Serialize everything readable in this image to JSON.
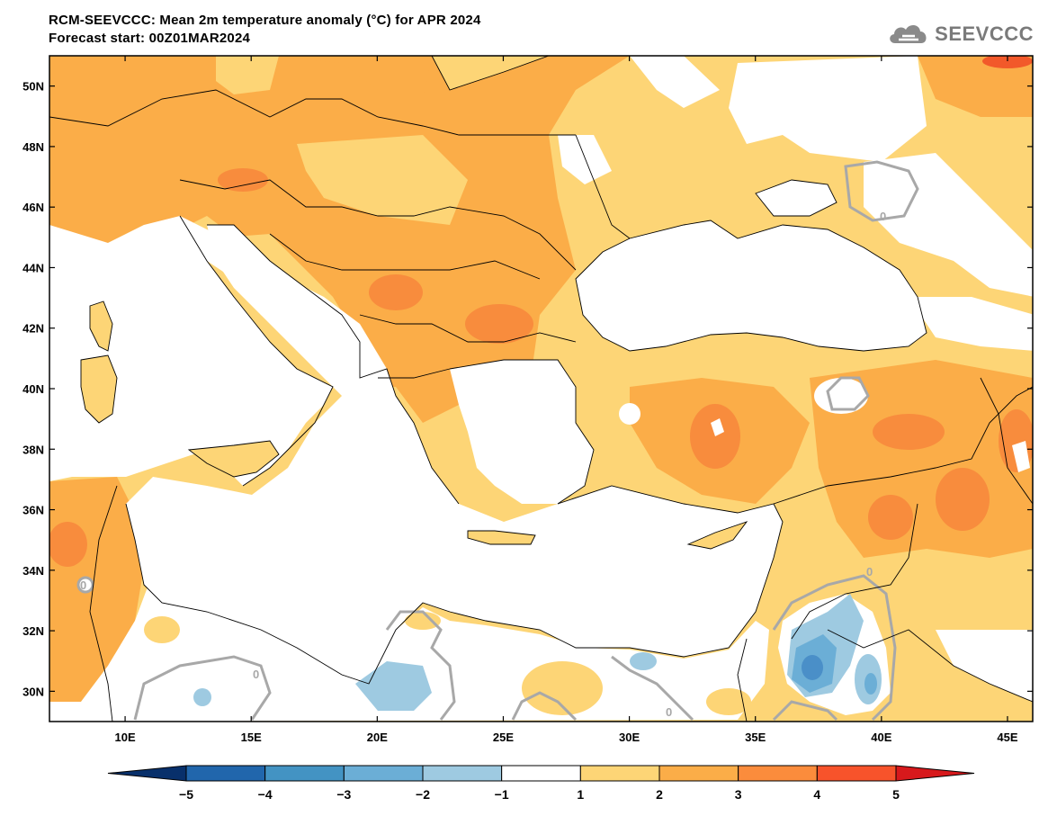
{
  "header": {
    "title": "RCM-SEEVCCC: Mean 2m temperature anomaly (°C) for APR 2024",
    "subtitle": "Forecast start: 00Z01MAR2024"
  },
  "logo": {
    "text": "SEEVCCC",
    "icon": "cloud-icon"
  },
  "map": {
    "lon_range": [
      7,
      46
    ],
    "lat_range": [
      29,
      51
    ],
    "lat_ticks": [
      "50N",
      "48N",
      "46N",
      "44N",
      "42N",
      "40N",
      "38N",
      "36N",
      "34N",
      "32N",
      "30N"
    ],
    "lon_ticks": [
      "10E",
      "15E",
      "20E",
      "25E",
      "30E",
      "35E",
      "40E",
      "45E"
    ],
    "contour_labels": [
      "0",
      "0",
      "0",
      "0",
      "0"
    ]
  },
  "colorbar": {
    "labels": [
      "−5",
      "−4",
      "−3",
      "−2",
      "−1",
      "1",
      "2",
      "3",
      "4",
      "5"
    ],
    "colors": [
      "#08306b",
      "#2166ac",
      "#4393c3",
      "#6baed6",
      "#9ecae1",
      "#ffffff",
      "#fdd576",
      "#fbad48",
      "#fb8c3c",
      "#f7532b",
      "#d7191c"
    ]
  },
  "palette": {
    "neg1": "#9ecae1",
    "neg2": "#6baed6",
    "neg3": "#4a8fc8",
    "pos1": "#fdd576",
    "pos2": "#fbad48",
    "pos3": "#f88c3d",
    "pos4": "#f2592a",
    "pos5": "#d7191c",
    "zero_contour": "#a8a8a8"
  }
}
